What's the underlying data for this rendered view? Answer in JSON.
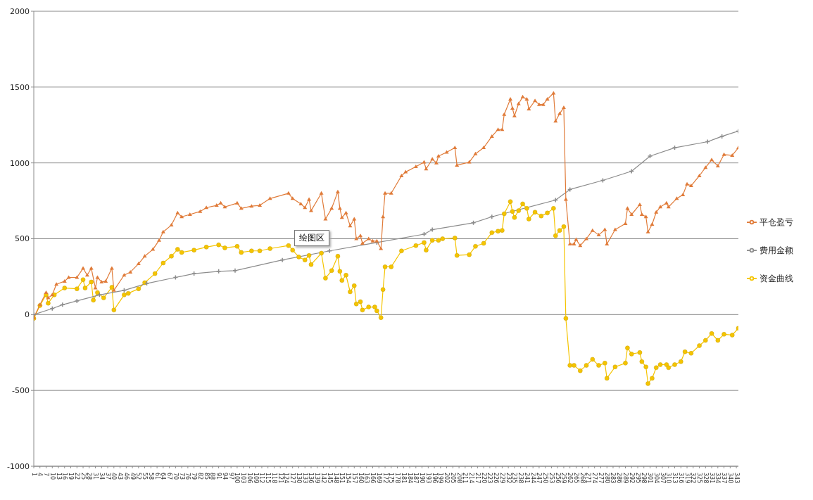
{
  "chart_data": {
    "type": "line",
    "xlim": [
      1,
      344
    ],
    "xticks": [
      1,
      4,
      7,
      10,
      13,
      16,
      19,
      22,
      25,
      28,
      31,
      34,
      37,
      40,
      43,
      46,
      49,
      52,
      55,
      58,
      61,
      64,
      67,
      70,
      73,
      76,
      79,
      82,
      85,
      88,
      91,
      94,
      97,
      100,
      103,
      106,
      109,
      112,
      115,
      118,
      121,
      124,
      127,
      130,
      133,
      136,
      139,
      142,
      145,
      148,
      151,
      154,
      157,
      160,
      163,
      166,
      169,
      172,
      175,
      178,
      181,
      184,
      187,
      190,
      193,
      196,
      199,
      202,
      205,
      208,
      211,
      214,
      217,
      220,
      223,
      226,
      229,
      232,
      235,
      238,
      241,
      244,
      247,
      250,
      253,
      256,
      259,
      262,
      265,
      268,
      271,
      274,
      277,
      280,
      283,
      286,
      289,
      292,
      295,
      298,
      301,
      304,
      307,
      310,
      313,
      316,
      319,
      322,
      325,
      328,
      331,
      334,
      337,
      340,
      343
    ],
    "ylim": [
      -1000,
      2000
    ],
    "yticks": [
      -1000,
      -500,
      0,
      500,
      1000,
      1500,
      2000
    ],
    "grid": "y",
    "legend": "right",
    "annotations": [
      "绘图区"
    ],
    "series": [
      {
        "name": "平仓盈亏",
        "color": "#e07b39",
        "marker": "triangle",
        "x": [
          1,
          4,
          7,
          8,
          10,
          12,
          16,
          18,
          22,
          25,
          27,
          29,
          31,
          32,
          34,
          36,
          39,
          40,
          45,
          48,
          52,
          55,
          59,
          62,
          64,
          68,
          71,
          73,
          77,
          82,
          85,
          90,
          92,
          94,
          100,
          102,
          107,
          111,
          116,
          125,
          127,
          131,
          133,
          135,
          136,
          141,
          143,
          146,
          149,
          150,
          151,
          153,
          155,
          157,
          158,
          160,
          161,
          164,
          166,
          168,
          170,
          171,
          172,
          175,
          180,
          182,
          187,
          191,
          192,
          195,
          197,
          198,
          202,
          206,
          207,
          213,
          216,
          220,
          224,
          227,
          229,
          230,
          233,
          234,
          235,
          237,
          239,
          241,
          242,
          245,
          247,
          249,
          251,
          254,
          255,
          257,
          259,
          260,
          262,
          264,
          265,
          267,
          270,
          273,
          276,
          279,
          280,
          284,
          289,
          290,
          292,
          296,
          297,
          299,
          300,
          302,
          304,
          306,
          309,
          310,
          314,
          317,
          319,
          321,
          325,
          328,
          331,
          334,
          337,
          341,
          344
        ],
        "values": [
          -20,
          65,
          145,
          110,
          130,
          200,
          220,
          245,
          245,
          305,
          260,
          305,
          175,
          245,
          215,
          220,
          305,
          160,
          260,
          280,
          335,
          385,
          430,
          490,
          545,
          590,
          670,
          645,
          660,
          680,
          705,
          720,
          735,
          710,
          735,
          700,
          715,
          720,
          765,
          800,
          765,
          730,
          705,
          760,
          685,
          800,
          630,
          700,
          810,
          700,
          640,
          670,
          585,
          630,
          500,
          520,
          470,
          500,
          485,
          485,
          435,
          645,
          800,
          800,
          915,
          940,
          975,
          1005,
          960,
          1025,
          1000,
          1045,
          1070,
          1100,
          985,
          1005,
          1060,
          1100,
          1175,
          1220,
          1220,
          1320,
          1420,
          1360,
          1310,
          1390,
          1435,
          1420,
          1355,
          1410,
          1385,
          1385,
          1420,
          1460,
          1275,
          1325,
          1365,
          760,
          465,
          465,
          495,
          455,
          500,
          555,
          525,
          560,
          465,
          560,
          600,
          700,
          660,
          725,
          660,
          645,
          545,
          595,
          675,
          710,
          735,
          710,
          765,
          790,
          860,
          850,
          915,
          970,
          1020,
          980,
          1055,
          1050,
          1100
        ]
      },
      {
        "name": "费用金额",
        "color": "#8c8c8c",
        "marker": "cross",
        "x": [
          1,
          10,
          15,
          22,
          33,
          45,
          56,
          70,
          79,
          91,
          99,
          122,
          145,
          168,
          191,
          195,
          215,
          224,
          255,
          262,
          278,
          292,
          301,
          313,
          329,
          336,
          344
        ],
        "values": [
          0,
          40,
          65,
          90,
          130,
          160,
          205,
          245,
          270,
          285,
          290,
          360,
          420,
          475,
          530,
          560,
          605,
          645,
          755,
          825,
          885,
          945,
          1045,
          1100,
          1140,
          1175,
          1210
        ]
      },
      {
        "name": "资金曲线",
        "color": "#f5c400",
        "marker": "circle",
        "x": [
          1,
          4,
          7,
          8,
          11,
          16,
          22,
          25,
          26,
          29,
          30,
          32,
          35,
          39,
          40,
          45,
          47,
          52,
          55,
          60,
          64,
          68,
          71,
          73,
          79,
          85,
          91,
          94,
          100,
          102,
          107,
          111,
          116,
          125,
          127,
          130,
          133,
          135,
          136,
          141,
          143,
          146,
          149,
          150,
          151,
          153,
          155,
          157,
          158,
          160,
          161,
          164,
          167,
          168,
          170,
          171,
          172,
          175,
          180,
          187,
          191,
          192,
          195,
          198,
          200,
          206,
          207,
          213,
          216,
          220,
          224,
          227,
          229,
          230,
          233,
          234,
          235,
          237,
          239,
          241,
          242,
          245,
          248,
          251,
          254,
          255,
          257,
          259,
          260,
          262,
          264,
          267,
          270,
          273,
          276,
          279,
          280,
          284,
          289,
          290,
          292,
          296,
          297,
          299,
          300,
          302,
          304,
          306,
          309,
          310,
          313,
          316,
          318,
          321,
          325,
          328,
          331,
          334,
          337,
          341,
          344
        ],
        "values": [
          -25,
          60,
          130,
          75,
          130,
          175,
          170,
          230,
          175,
          215,
          95,
          145,
          110,
          180,
          30,
          130,
          140,
          170,
          210,
          270,
          340,
          385,
          430,
          410,
          425,
          445,
          460,
          440,
          450,
          410,
          420,
          420,
          435,
          455,
          425,
          380,
          360,
          390,
          330,
          405,
          240,
          290,
          385,
          285,
          225,
          260,
          150,
          190,
          70,
          85,
          30,
          50,
          50,
          25,
          -20,
          165,
          315,
          315,
          420,
          455,
          475,
          425,
          490,
          490,
          500,
          505,
          390,
          395,
          450,
          470,
          540,
          550,
          555,
          665,
          745,
          680,
          640,
          685,
          730,
          700,
          630,
          675,
          650,
          670,
          700,
          520,
          555,
          580,
          -25,
          -335,
          -335,
          -370,
          -335,
          -295,
          -335,
          -320,
          -420,
          -345,
          -320,
          -220,
          -260,
          -250,
          -310,
          -345,
          -455,
          -420,
          -350,
          -330,
          -330,
          -350,
          -330,
          -310,
          -245,
          -255,
          -205,
          -170,
          -125,
          -170,
          -130,
          -135,
          -90
        ]
      }
    ]
  }
}
